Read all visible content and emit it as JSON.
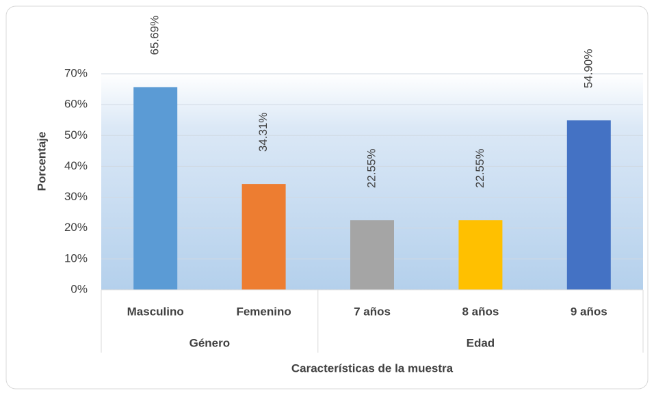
{
  "chart_data": {
    "type": "bar",
    "x_label": "Características de la muestra",
    "y_label": "Porcentaje",
    "groups": [
      {
        "label": "Género",
        "categories": [
          "Masculino",
          "Femenino"
        ]
      },
      {
        "label": "Edad",
        "categories": [
          "7 años",
          "8 años",
          "9 años"
        ]
      }
    ],
    "values": [
      65.69,
      34.31,
      22.55,
      22.55,
      54.9
    ],
    "value_labels": [
      "65.69%",
      "34.31%",
      "22.55%",
      "22.55%",
      "54.90%"
    ],
    "colors": [
      "#5b9bd5",
      "#ed7d31",
      "#a5a5a5",
      "#ffc000",
      "#4472c4"
    ],
    "ylim": [
      0,
      70
    ],
    "yticks": [
      {
        "value": 0,
        "label": "0%"
      },
      {
        "value": 10,
        "label": "10%"
      },
      {
        "value": 20,
        "label": "20%"
      },
      {
        "value": 30,
        "label": "30%"
      },
      {
        "value": 40,
        "label": "40%"
      },
      {
        "value": 50,
        "label": "50%"
      },
      {
        "value": 60,
        "label": "60%"
      },
      {
        "value": 70,
        "label": "70%"
      }
    ],
    "grid": true
  }
}
